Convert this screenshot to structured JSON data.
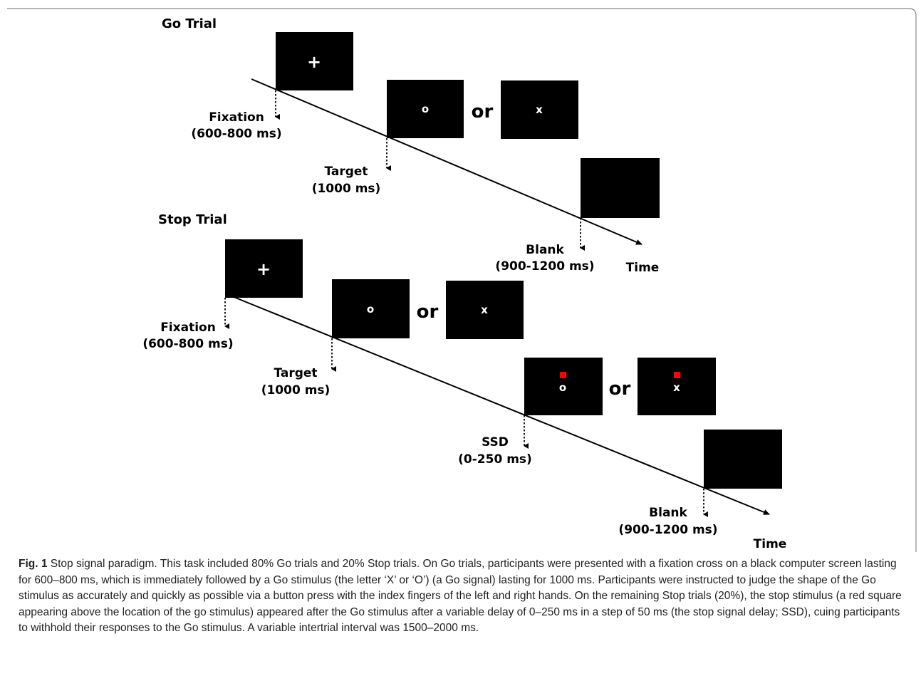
{
  "go_trial": {
    "heading": "Go Trial",
    "fixation_symbol": "+",
    "target_left": "o",
    "target_right": "x",
    "or_text": "or",
    "fixation_label": "Fixation",
    "fixation_duration": "(600-800 ms)",
    "target_label": "Target",
    "target_duration": "(1000 ms)",
    "blank_label": "Blank",
    "blank_duration": "(900-1200 ms)",
    "time_label": "Time"
  },
  "stop_trial": {
    "heading": "Stop Trial",
    "fixation_symbol": "+",
    "target_left": "o",
    "target_right": "x",
    "or_text": "or",
    "stop_left": "o",
    "stop_right": "x",
    "or_text_2": "or",
    "fixation_label": "Fixation",
    "fixation_duration": "(600-800 ms)",
    "target_label": "Target",
    "target_duration": "(1000 ms)",
    "ssd_label": "SSD",
    "ssd_duration": "(0-250 ms)",
    "blank_label": "Blank",
    "blank_duration": "(900-1200 ms)",
    "time_label": "Time"
  },
  "colors": {
    "screen": "#000000",
    "stop_signal": "#ff0000",
    "frame": "#888888"
  },
  "caption": {
    "fig_label": "Fig. 1",
    "text": " Stop signal paradigm. This task included 80% Go trials and 20% Stop trials. On Go trials, participants were presented with a fixation cross on a black computer screen lasting for 600–800 ms, which is immediately followed by a Go stimulus (the letter ‘X’ or ‘O’) (a Go signal) lasting for 1000 ms. Participants were instructed to judge the shape of the Go stimulus as accurately and quickly as possible via a button press with the index fingers of the left and right hands. On the remaining Stop trials (20%), the stop stimulus (a red square appearing above the location of the go stimulus) appeared after the Go stimulus after a variable delay of 0–250 ms in a step of 50 ms (the stop signal delay; SSD), cuing participants to withhold their responses to the Go stimulus. A variable intertrial interval was 1500–2000 ms."
  }
}
